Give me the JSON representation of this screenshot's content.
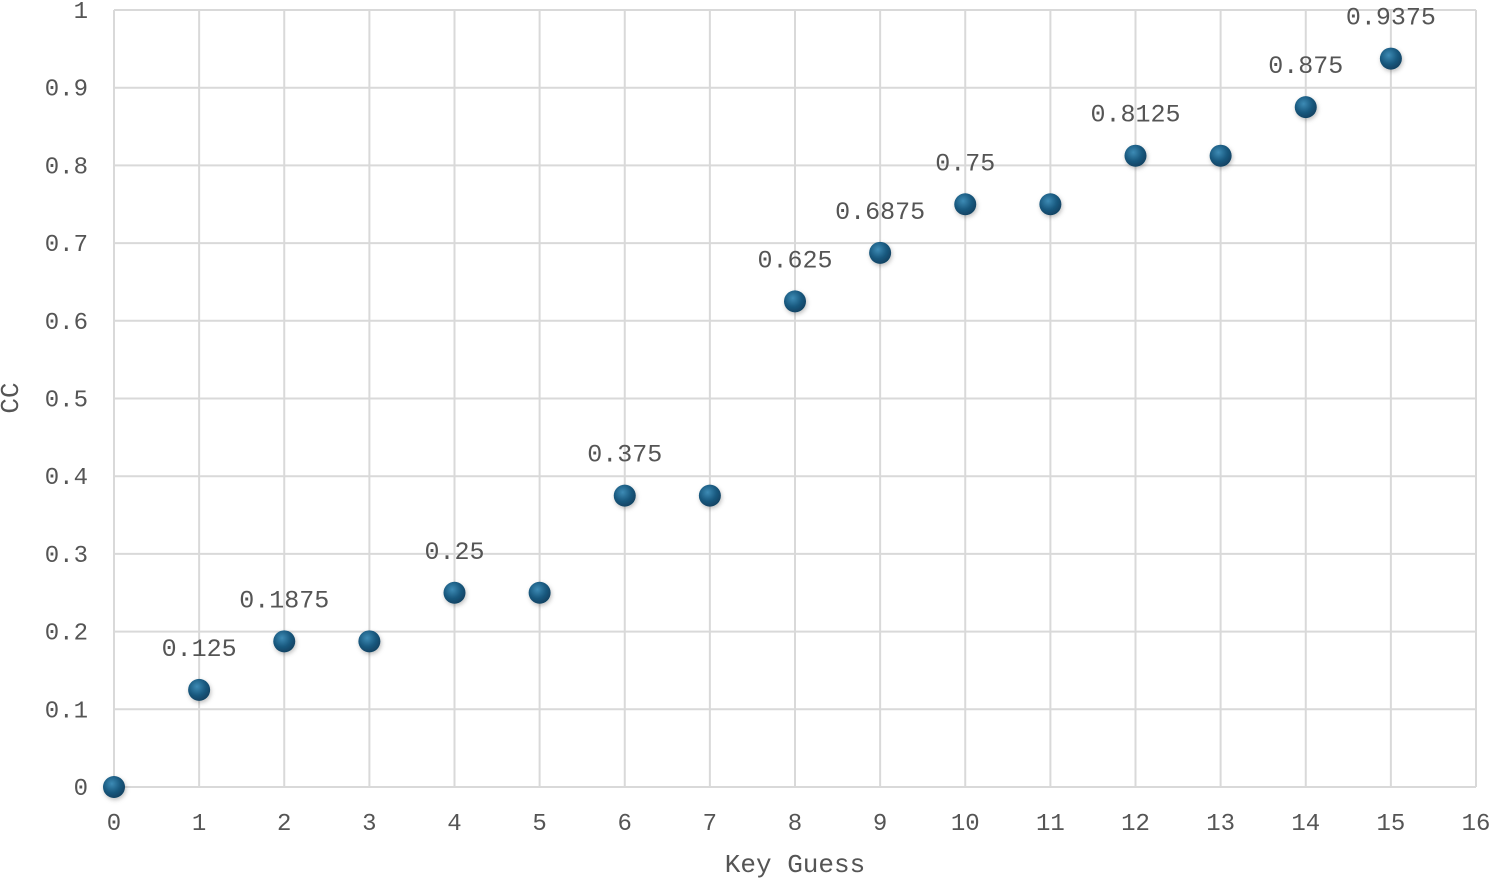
{
  "chart_data": {
    "type": "scatter",
    "title": "",
    "xlabel": "Key Guess",
    "ylabel": "CC",
    "xlim": [
      0,
      16
    ],
    "ylim": [
      0,
      1
    ],
    "x_ticks": [
      "0",
      "1",
      "2",
      "3",
      "4",
      "5",
      "6",
      "7",
      "8",
      "9",
      "10",
      "11",
      "12",
      "13",
      "14",
      "15",
      "16"
    ],
    "y_ticks": [
      "0",
      "0.1",
      "0.2",
      "0.3",
      "0.4",
      "0.5",
      "0.6",
      "0.7",
      "0.8",
      "0.9",
      "1"
    ],
    "grid": true,
    "legend": "none",
    "marker_color": "#1a5a80",
    "series": [
      {
        "x": [
          0,
          1,
          2,
          3,
          4,
          5,
          6,
          7,
          8,
          9,
          10,
          11,
          12,
          13,
          14,
          15
        ],
        "y": [
          0,
          0.125,
          0.1875,
          0.1875,
          0.25,
          0.25,
          0.375,
          0.375,
          0.625,
          0.6875,
          0.75,
          0.75,
          0.8125,
          0.8125,
          0.875,
          0.9375
        ]
      }
    ],
    "annotations": [
      {
        "x": 1,
        "y": 0.125,
        "text": "0.125"
      },
      {
        "x": 2,
        "y": 0.1875,
        "text": "0.1875"
      },
      {
        "x": 4,
        "y": 0.25,
        "text": "0.25"
      },
      {
        "x": 6,
        "y": 0.375,
        "text": "0.375"
      },
      {
        "x": 8,
        "y": 0.625,
        "text": "0.625"
      },
      {
        "x": 9,
        "y": 0.6875,
        "text": "0.6875"
      },
      {
        "x": 10,
        "y": 0.75,
        "text": "0.75"
      },
      {
        "x": 12,
        "y": 0.8125,
        "text": "0.8125"
      },
      {
        "x": 14,
        "y": 0.875,
        "text": "0.875"
      },
      {
        "x": 15,
        "y": 0.9375,
        "text": "0.9375"
      }
    ]
  }
}
